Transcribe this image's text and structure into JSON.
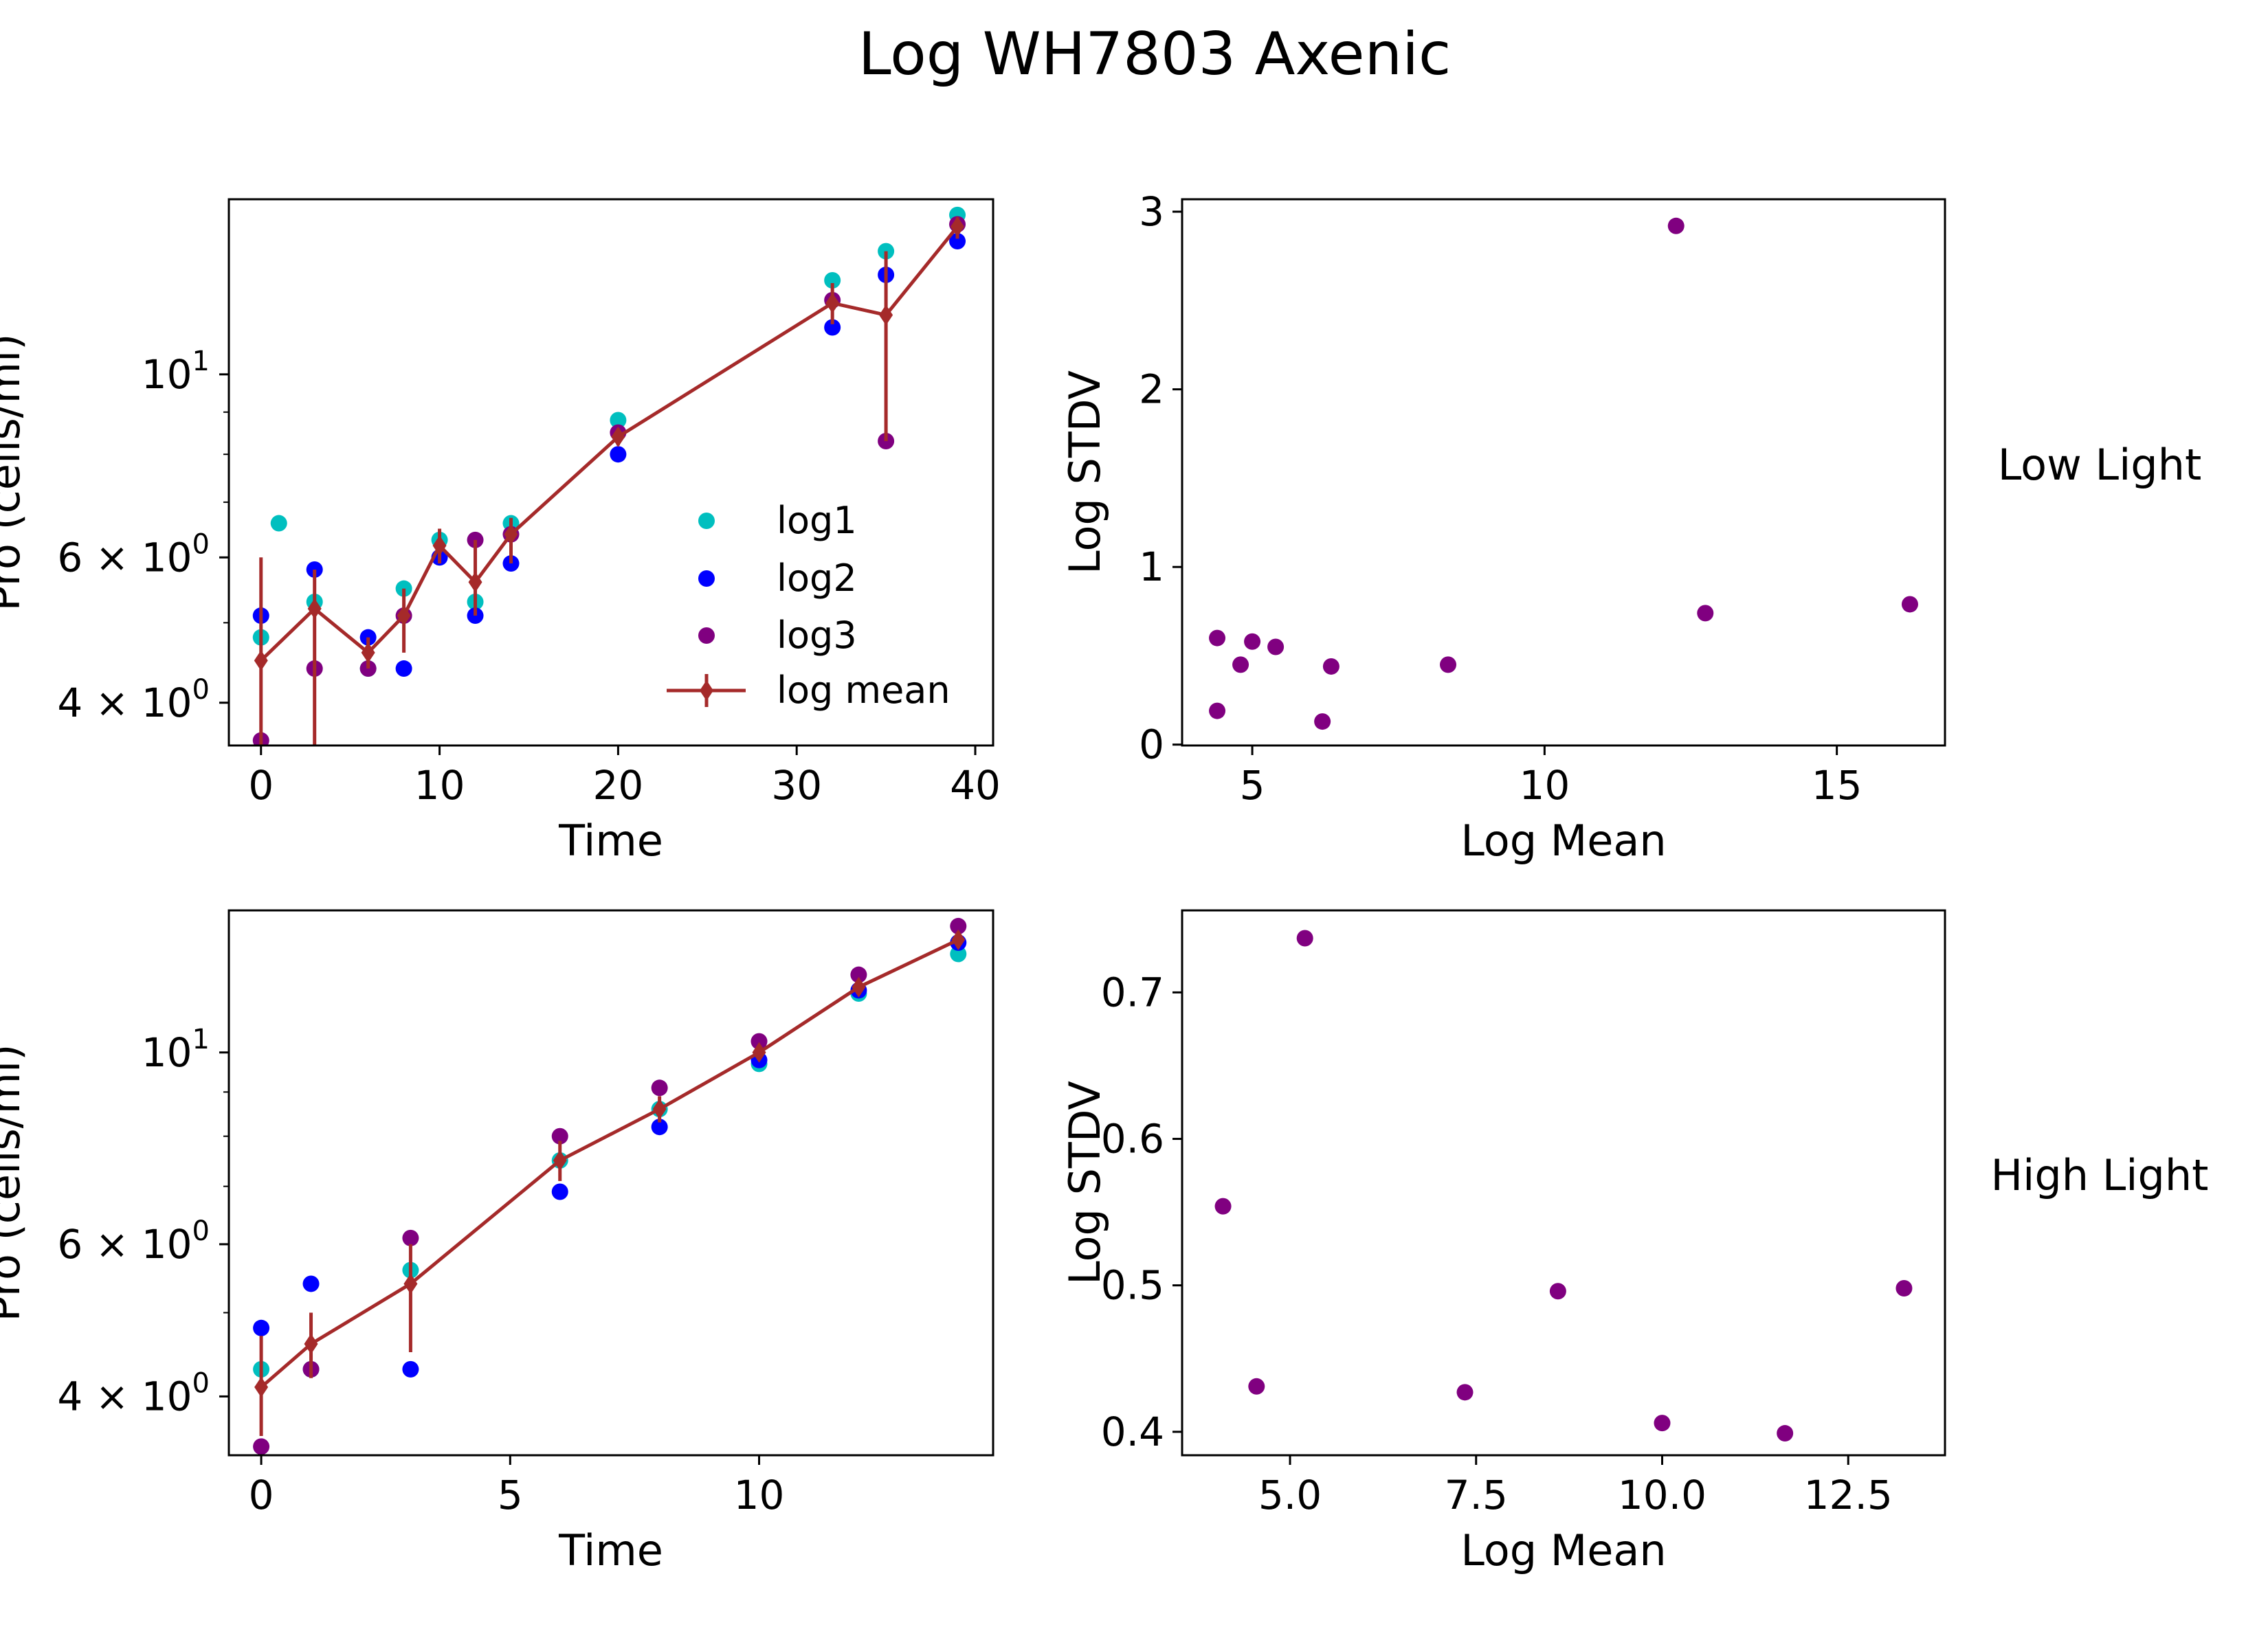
{
  "title": "Log WH7803 Axenic",
  "row_labels": [
    "Low Light",
    "High Light"
  ],
  "legend": {
    "log1": "log1",
    "log2": "log2",
    "log3": " log3",
    "mean": "log mean"
  },
  "colors": {
    "log1": "#00BFBF",
    "log2": "#0000FF",
    "log3": "#800080",
    "mean": "#A52A2A",
    "scatter": "#800080"
  },
  "chart_data": [
    {
      "id": "ts_low",
      "type": "line",
      "title": "",
      "xlabel": "Time",
      "ylabel": "Pro (cells/ml)",
      "yscale": "log",
      "xlim": [
        -1.8,
        41
      ],
      "ylim": [
        3.55,
        16.3
      ],
      "xticks": [
        0,
        10,
        20,
        30,
        40
      ],
      "xtick_labels": [
        "0",
        "10",
        "20",
        "30",
        "40"
      ],
      "yticks": [
        4,
        6,
        10
      ],
      "ytick_labels": [
        [
          "4",
          "×",
          "10",
          "0"
        ],
        [
          "6",
          "×",
          "10",
          "0"
        ],
        [
          "",
          "",
          "10",
          "1"
        ]
      ],
      "x": [
        0,
        1,
        3,
        6,
        8,
        10,
        12,
        14,
        20,
        32,
        35,
        39
      ],
      "series": [
        {
          "name": "log1",
          "x": [
            0,
            1,
            3,
            6,
            8,
            10,
            12,
            14,
            20,
            32,
            35,
            39
          ],
          "values": [
            4.8,
            6.6,
            5.3,
            4.4,
            5.5,
            6.3,
            5.3,
            6.6,
            8.8,
            13.0,
            14.1,
            15.6
          ]
        },
        {
          "name": "log2",
          "x": [
            0,
            3,
            6,
            8,
            10,
            12,
            14,
            20,
            32,
            35,
            39
          ],
          "values": [
            5.1,
            5.8,
            4.8,
            4.4,
            6.0,
            5.1,
            5.9,
            8.0,
            11.4,
            13.2,
            14.5
          ]
        },
        {
          "name": "log3",
          "x": [
            0,
            3,
            6,
            8,
            12,
            14,
            20,
            32,
            35,
            39
          ],
          "values": [
            3.6,
            4.4,
            4.4,
            5.1,
            6.3,
            6.4,
            8.5,
            12.3,
            8.3,
            15.2
          ]
        },
        {
          "name": "log mean",
          "x": [
            0,
            3,
            6,
            8,
            10,
            12,
            14,
            20,
            32,
            35,
            39
          ],
          "values": [
            4.5,
            5.2,
            4.6,
            5.1,
            6.2,
            5.6,
            6.4,
            8.4,
            12.2,
            11.8,
            15.1
          ],
          "err_low": [
            1.5,
            2.0,
            0.2,
            0.5,
            0.3,
            0.5,
            0.5,
            0.2,
            0.7,
            3.5,
            0.5
          ],
          "err_high": [
            1.5,
            0.6,
            0.2,
            0.4,
            0.3,
            0.7,
            0.3,
            0.2,
            0.7,
            2.3,
            0.4
          ]
        }
      ]
    },
    {
      "id": "sc_low",
      "type": "scatter",
      "title": "",
      "xlabel": "Log Mean",
      "ylabel": "Log STDV",
      "xlim": [
        3.8,
        16.85
      ],
      "ylim": [
        -0.005,
        3.07
      ],
      "xticks": [
        5,
        10,
        15
      ],
      "xtick_labels": [
        "5",
        "10",
        "15"
      ],
      "yticks": [
        0,
        1,
        2,
        3
      ],
      "ytick_labels": [
        "0",
        "1",
        "2",
        "3"
      ],
      "x": [
        4.4,
        4.4,
        4.8,
        5.0,
        5.4,
        6.2,
        6.35,
        8.35,
        12.25,
        12.75,
        16.25
      ],
      "y": [
        0.6,
        0.19,
        0.45,
        0.58,
        0.55,
        0.13,
        0.44,
        0.45,
        2.92,
        0.74,
        0.79
      ]
    },
    {
      "id": "ts_high",
      "type": "line",
      "title": "",
      "xlabel": "Time",
      "ylabel": "Pro (cells/ml)",
      "yscale": "log",
      "xlim": [
        -0.65,
        14.7
      ],
      "ylim": [
        3.42,
        14.6
      ],
      "xticks": [
        0,
        5,
        10
      ],
      "xtick_labels": [
        "0",
        "5",
        "10"
      ],
      "yticks": [
        4,
        6,
        10
      ],
      "ytick_labels": [
        [
          "4",
          "×",
          "10",
          "0"
        ],
        [
          "6",
          "×",
          "10",
          "0"
        ],
        [
          "",
          "",
          "10",
          "1"
        ]
      ],
      "x": [
        0,
        1,
        3,
        6,
        8,
        10,
        12,
        14
      ],
      "series": [
        {
          "name": "log1",
          "x": [
            0,
            1,
            3,
            6,
            8,
            10,
            12,
            14
          ],
          "values": [
            4.3,
            4.3,
            5.6,
            7.5,
            8.6,
            9.7,
            11.7,
            13.0
          ]
        },
        {
          "name": "log2",
          "x": [
            0,
            1,
            3,
            6,
            8,
            10,
            12,
            14
          ],
          "values": [
            4.8,
            5.4,
            4.3,
            6.9,
            8.2,
            9.8,
            11.8,
            13.4
          ]
        },
        {
          "name": "log3",
          "x": [
            0,
            1,
            3,
            6,
            8,
            10,
            12,
            14
          ],
          "values": [
            3.5,
            4.3,
            6.1,
            8.0,
            9.1,
            10.3,
            12.3,
            14.0
          ]
        },
        {
          "name": "log mean",
          "x": [
            0,
            1,
            3,
            6,
            8,
            10,
            12,
            14
          ],
          "values": [
            4.1,
            4.6,
            5.4,
            7.5,
            8.6,
            10.0,
            11.9,
            13.5
          ],
          "err_low": [
            0.5,
            0.4,
            0.9,
            0.4,
            0.3,
            0.1,
            0.2,
            0.3
          ],
          "err_high": [
            0.6,
            0.4,
            0.6,
            0.4,
            0.3,
            0.1,
            0.2,
            0.3
          ]
        }
      ]
    },
    {
      "id": "sc_high",
      "type": "scatter",
      "title": "",
      "xlabel": "Log Mean",
      "ylabel": "Log STDV",
      "xlim": [
        3.55,
        13.8
      ],
      "ylim": [
        0.384,
        0.756
      ],
      "xticks": [
        5.0,
        7.5,
        10.0,
        12.5
      ],
      "xtick_labels": [
        "5.0",
        "7.5",
        "10.0",
        "12.5"
      ],
      "yticks": [
        0.4,
        0.5,
        0.6,
        0.7
      ],
      "ytick_labels": [
        "0.4",
        "0.5",
        "0.6",
        "0.7"
      ],
      "x": [
        4.1,
        4.55,
        5.2,
        7.35,
        8.6,
        10.0,
        11.65,
        13.25
      ],
      "y": [
        0.554,
        0.431,
        0.737,
        0.427,
        0.496,
        0.406,
        0.399,
        0.498
      ]
    }
  ]
}
